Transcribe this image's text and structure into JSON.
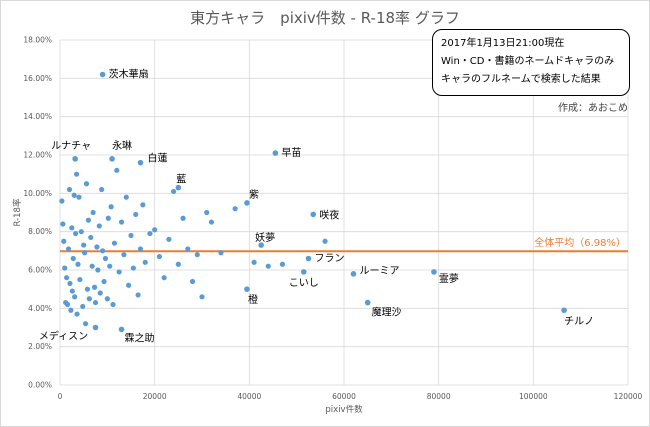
{
  "title": "東方キャラ　pixiv件数 - R-18率 グラフ",
  "note_lines": [
    "2017年1月13日21:00現在",
    "Win・CD・書籍のネームドキャラのみ",
    "キャラのフルネームで検索した結果"
  ],
  "author": "作成：あおこめ",
  "colors": {
    "points": "#5b9bd5",
    "average_line": "#ed7d31",
    "highlight_label": "#ff0000",
    "grid": "#d9d9d9"
  },
  "chart_data": {
    "type": "scatter",
    "xlabel": "pixiv件数",
    "ylabel": "R-18率",
    "xlim": [
      0,
      120000
    ],
    "ylim": [
      0,
      18
    ],
    "x_ticks": [
      "0",
      "20000",
      "40000",
      "60000",
      "80000",
      "100000",
      "120000"
    ],
    "y_ticks": [
      "0.00%",
      "2.00%",
      "4.00%",
      "6.00%",
      "8.00%",
      "10.00%",
      "12.00%",
      "14.00%",
      "16.00%",
      "18.00%"
    ],
    "grid": true,
    "average": {
      "value": 6.98,
      "label": "全体平均（6.98%）"
    },
    "labeled_points": [
      {
        "label": "茨木華扇",
        "x": 9000,
        "y": 16.2,
        "highlight": true
      },
      {
        "label": "ルナチャ",
        "x": 3200,
        "y": 11.8
      },
      {
        "label": "永琳",
        "x": 11000,
        "y": 11.8
      },
      {
        "label": "白蓮",
        "x": 17000,
        "y": 11.6
      },
      {
        "label": "早苗",
        "x": 45500,
        "y": 12.1
      },
      {
        "label": "藍",
        "x": 25000,
        "y": 10.3
      },
      {
        "label": "紫",
        "x": 39500,
        "y": 9.5
      },
      {
        "label": "咲夜",
        "x": 53500,
        "y": 8.9
      },
      {
        "label": "妖夢",
        "x": 42500,
        "y": 7.3
      },
      {
        "label": "フラン",
        "x": 52500,
        "y": 6.6
      },
      {
        "label": "こいし",
        "x": 51500,
        "y": 5.9
      },
      {
        "label": "ルーミア",
        "x": 62000,
        "y": 5.8
      },
      {
        "label": "霊夢",
        "x": 79000,
        "y": 5.9
      },
      {
        "label": "橙",
        "x": 39500,
        "y": 5.0
      },
      {
        "label": "魔理沙",
        "x": 65000,
        "y": 4.3
      },
      {
        "label": "チルノ",
        "x": 106500,
        "y": 3.9
      },
      {
        "label": "メディスン",
        "x": 7500,
        "y": 3.0
      },
      {
        "label": "霖之助",
        "x": 13000,
        "y": 2.9
      }
    ],
    "other_points": [
      [
        400,
        9.6
      ],
      [
        600,
        8.4
      ],
      [
        800,
        7.5
      ],
      [
        1000,
        6.1
      ],
      [
        1200,
        4.3
      ],
      [
        1400,
        5.6
      ],
      [
        1600,
        4.2
      ],
      [
        1800,
        7.1
      ],
      [
        2000,
        10.2
      ],
      [
        2100,
        5.3
      ],
      [
        2300,
        3.9
      ],
      [
        2500,
        8.2
      ],
      [
        2600,
        4.9
      ],
      [
        2800,
        6.6
      ],
      [
        3000,
        9.9
      ],
      [
        3100,
        4.6
      ],
      [
        3300,
        7.9
      ],
      [
        3500,
        11.0
      ],
      [
        3600,
        3.7
      ],
      [
        3800,
        6.3
      ],
      [
        4000,
        9.8
      ],
      [
        4200,
        5.5
      ],
      [
        4500,
        8.0
      ],
      [
        4800,
        4.1
      ],
      [
        5000,
        7.3
      ],
      [
        5200,
        6.9
      ],
      [
        5400,
        3.2
      ],
      [
        5600,
        10.5
      ],
      [
        5800,
        5.0
      ],
      [
        6000,
        8.6
      ],
      [
        6200,
        4.5
      ],
      [
        6500,
        7.7
      ],
      [
        6800,
        6.2
      ],
      [
        7000,
        9.0
      ],
      [
        7300,
        5.1
      ],
      [
        7500,
        4.3
      ],
      [
        7800,
        7.2
      ],
      [
        8000,
        6.0
      ],
      [
        8300,
        8.3
      ],
      [
        8500,
        4.8
      ],
      [
        8800,
        10.2
      ],
      [
        9000,
        7.0
      ],
      [
        9300,
        5.4
      ],
      [
        9600,
        6.6
      ],
      [
        10000,
        4.5
      ],
      [
        10200,
        8.7
      ],
      [
        10500,
        6.2
      ],
      [
        10800,
        9.3
      ],
      [
        11200,
        4.2
      ],
      [
        11500,
        7.4
      ],
      [
        12000,
        11.2
      ],
      [
        12500,
        5.9
      ],
      [
        13000,
        8.5
      ],
      [
        13500,
        6.8
      ],
      [
        14000,
        9.8
      ],
      [
        14500,
        5.2
      ],
      [
        15000,
        7.8
      ],
      [
        15500,
        6.1
      ],
      [
        16000,
        8.9
      ],
      [
        16500,
        4.7
      ],
      [
        17000,
        7.1
      ],
      [
        17500,
        9.4
      ],
      [
        18000,
        6.4
      ],
      [
        19000,
        7.9
      ],
      [
        20000,
        8.1
      ],
      [
        21000,
        6.7
      ],
      [
        22000,
        5.6
      ],
      [
        23000,
        7.6
      ],
      [
        24000,
        10.1
      ],
      [
        25000,
        6.3
      ],
      [
        26000,
        8.7
      ],
      [
        27000,
        7.1
      ],
      [
        28000,
        5.4
      ],
      [
        29000,
        6.8
      ],
      [
        30000,
        4.6
      ],
      [
        31000,
        9.0
      ],
      [
        32000,
        8.5
      ],
      [
        34000,
        6.9
      ],
      [
        37000,
        9.2
      ],
      [
        41000,
        6.4
      ],
      [
        44000,
        6.2
      ],
      [
        47000,
        6.3
      ],
      [
        56000,
        7.5
      ]
    ]
  }
}
